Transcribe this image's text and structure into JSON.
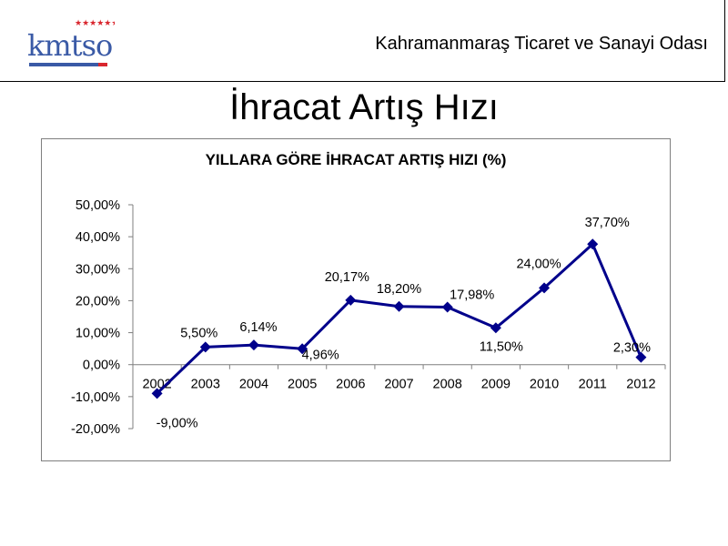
{
  "header": {
    "organization": "Kahramanmaraş Ticaret ve Sanayi Odası",
    "logo_text": "kmtso",
    "logo_icon": "kmtso-logo"
  },
  "slide": {
    "title": "İhracat Artış Hızı"
  },
  "colors": {
    "series_line": "#00008b",
    "logo_blue": "#3a5aa6",
    "logo_red": "#d9262e",
    "axis": "#7f7f7f"
  },
  "chart_data": {
    "type": "line",
    "title": "YILLARA GÖRE İHRACAT ARTIŞ HIZI (%)",
    "xlabel": "",
    "ylabel": "",
    "categories": [
      "2002",
      "2003",
      "2004",
      "2005",
      "2006",
      "2007",
      "2008",
      "2009",
      "2010",
      "2011",
      "2012"
    ],
    "series": [
      {
        "values": [
          -9.0,
          5.5,
          6.14,
          4.96,
          20.17,
          18.2,
          17.98,
          11.5,
          24.0,
          37.7,
          2.3
        ],
        "labels": [
          "-9,00%",
          "5,50%",
          "6,14%",
          "4,96%",
          "20,17%",
          "18,20%",
          "17,98%",
          "11,50%",
          "24,00%",
          "37,70%",
          "2,30%"
        ],
        "marker": "diamond"
      }
    ],
    "ylim": [
      -20,
      50
    ],
    "yticks": [
      "-20,00%",
      "-10,00%",
      "0,00%",
      "10,00%",
      "20,00%",
      "30,00%",
      "40,00%",
      "50,00%"
    ],
    "ytick_values": [
      -20,
      -10,
      0,
      10,
      20,
      30,
      40,
      50
    ],
    "grid": false,
    "legend": "none"
  }
}
